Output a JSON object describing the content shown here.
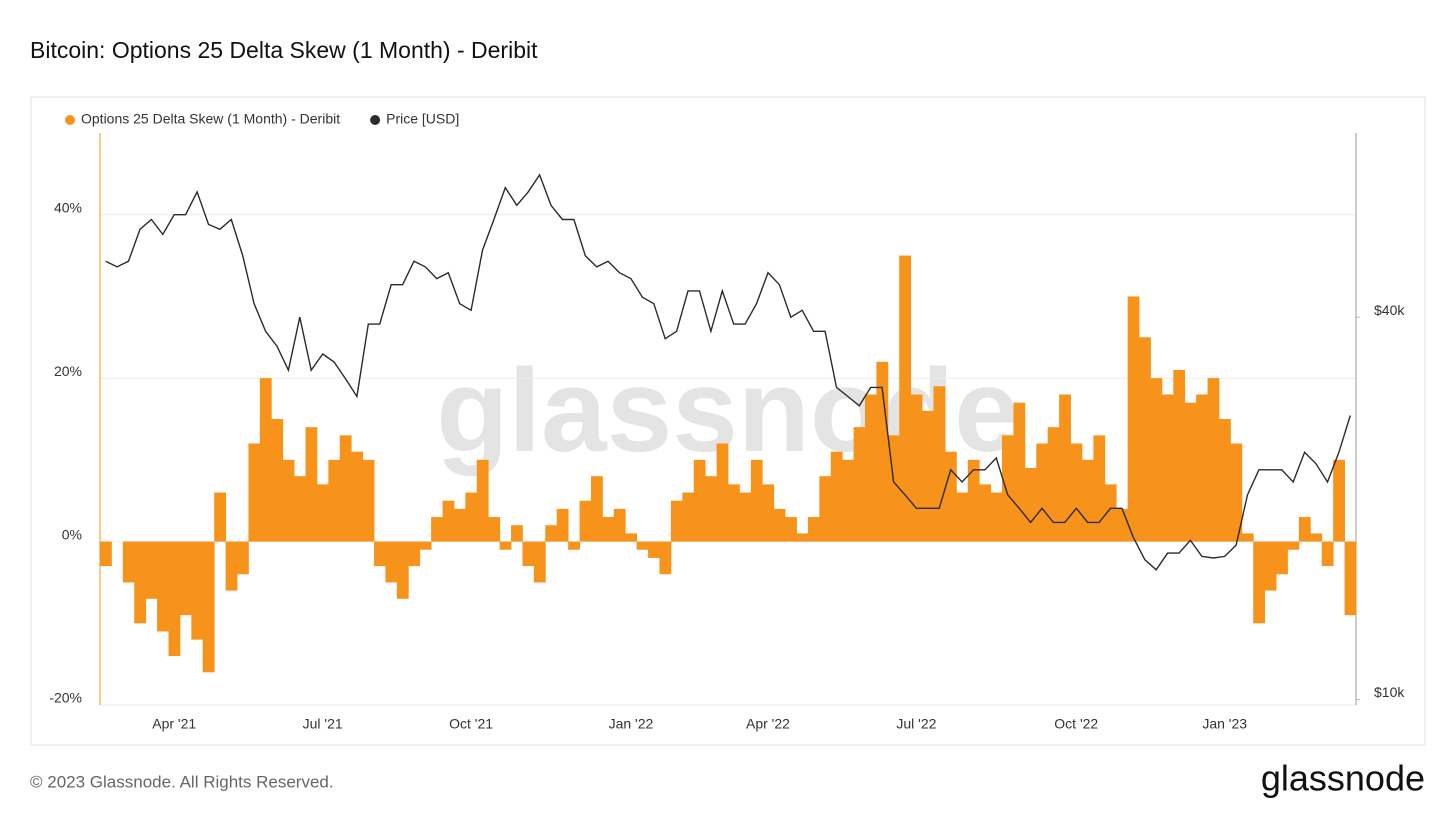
{
  "chart_data": {
    "type": "combo",
    "title": "Bitcoin: Options 25 Delta Skew (1 Month) - Deribit",
    "watermark": "glassnode",
    "footer": "© 2023 Glassnode. All Rights Reserved.",
    "brand": "glassnode",
    "categories": [
      null,
      null,
      null,
      null,
      null,
      null,
      "Apr '21",
      null,
      null,
      null,
      null,
      null,
      null,
      null,
      null,
      null,
      null,
      null,
      null,
      "Jul '21",
      null,
      null,
      null,
      null,
      null,
      null,
      null,
      null,
      null,
      null,
      null,
      null,
      "Oct '21",
      null,
      null,
      null,
      null,
      null,
      null,
      null,
      null,
      null,
      null,
      null,
      null,
      null,
      "Jan '22",
      null,
      null,
      null,
      null,
      null,
      null,
      null,
      null,
      null,
      null,
      null,
      "Apr '22",
      null,
      null,
      null,
      null,
      null,
      null,
      null,
      null,
      null,
      null,
      null,
      null,
      "Jul '22",
      null,
      null,
      null,
      null,
      null,
      null,
      null,
      null,
      null,
      null,
      null,
      null,
      null,
      "Oct '22",
      null,
      null,
      null,
      null,
      null,
      null,
      null,
      null,
      null,
      null,
      null,
      null,
      "Jan '23",
      null,
      null,
      null,
      null,
      null,
      null,
      null,
      null,
      null,
      null,
      null
    ],
    "series": [
      {
        "name": "Options 25 Delta Skew (1 Month) - Deribit",
        "color": "#f7931a",
        "type": "bar",
        "values": [
          -3,
          0,
          -5,
          -10,
          -7,
          -11,
          -14,
          -9,
          -12,
          -16,
          6,
          -6,
          -4,
          12,
          20,
          15,
          10,
          8,
          14,
          7,
          10,
          13,
          11,
          10,
          -3,
          -5,
          -7,
          -3,
          -1,
          3,
          5,
          4,
          6,
          10,
          3,
          -1,
          2,
          -3,
          -5,
          2,
          4,
          -1,
          5,
          8,
          3,
          4,
          1,
          -1,
          -2,
          -4,
          5,
          6,
          10,
          8,
          12,
          7,
          6,
          10,
          7,
          4,
          3,
          1,
          3,
          8,
          11,
          10,
          14,
          18,
          22,
          13,
          35,
          18,
          16,
          19,
          11,
          6,
          10,
          7,
          6,
          13,
          17,
          9,
          12,
          14,
          18,
          12,
          10,
          13,
          7,
          4,
          30,
          25,
          20,
          18,
          21,
          17,
          18,
          20,
          15,
          12,
          1,
          -10,
          -6,
          -4,
          -1,
          3,
          1,
          -3,
          10,
          -9
        ]
      },
      {
        "name": "Price [USD]",
        "color": "#2b2b2b",
        "type": "line",
        "axis": "y2",
        "values": [
          49000,
          48000,
          49000,
          55000,
          57000,
          54000,
          58000,
          58000,
          63000,
          56000,
          55000,
          57000,
          50000,
          42000,
          38000,
          36000,
          33000,
          40000,
          33000,
          35000,
          34000,
          32000,
          30000,
          39000,
          39000,
          45000,
          45000,
          49000,
          48000,
          46000,
          47000,
          42000,
          41000,
          51000,
          57000,
          64000,
          60000,
          63000,
          67000,
          60000,
          57000,
          57000,
          50000,
          48000,
          49000,
          47000,
          46000,
          43000,
          42000,
          37000,
          38000,
          44000,
          44000,
          38000,
          44000,
          39000,
          39000,
          42000,
          47000,
          45000,
          40000,
          41000,
          38000,
          38000,
          31000,
          30000,
          29000,
          31000,
          31000,
          22000,
          21000,
          20000,
          20000,
          20000,
          23000,
          22000,
          23000,
          23000,
          24000,
          21000,
          20000,
          19000,
          20000,
          19000,
          19000,
          20000,
          19000,
          19000,
          20000,
          20000,
          18000,
          16600,
          16000,
          17000,
          17000,
          17800,
          16800,
          16700,
          16800,
          17500,
          21000,
          23000,
          23000,
          23000,
          22000,
          24500,
          23500,
          22000,
          24500,
          28000
        ]
      }
    ],
    "ylim": [
      -20,
      50
    ],
    "yticks": [
      {
        "value": -20,
        "label": "-20%"
      },
      {
        "value": 0,
        "label": "0%"
      },
      {
        "value": 20,
        "label": "20%"
      },
      {
        "value": 40,
        "label": "40%"
      }
    ],
    "y2lim": [
      9800,
      78000
    ],
    "y2scale": "log",
    "y2ticks": [
      {
        "value": 10000,
        "label": "$10k"
      },
      {
        "value": 40000,
        "label": "$40k"
      }
    ],
    "grid": true
  }
}
